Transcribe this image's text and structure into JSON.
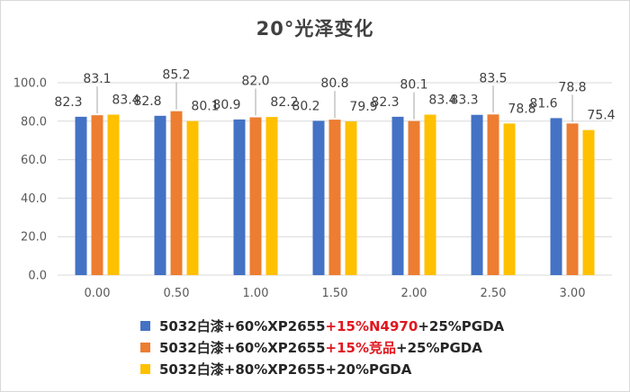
{
  "chart_data": {
    "type": "bar",
    "title": "20°光泽变化",
    "categories": [
      "0.00",
      "0.50",
      "1.00",
      "1.50",
      "2.00",
      "2.50",
      "3.00"
    ],
    "ylim": [
      0,
      100
    ],
    "yticks": [
      "0.0",
      "20.0",
      "40.0",
      "60.0",
      "80.0",
      "100.0"
    ],
    "grid": true,
    "legend_position": "bottom",
    "series": [
      {
        "name": "5032白漆+60%XP2655+15%N4970+25%PGDA",
        "name_parts": [
          {
            "text": "5032白漆+60%XP2655",
            "highlight": false
          },
          {
            "text": "+15%N4970",
            "highlight": true
          },
          {
            "text": "+25%PGDA",
            "highlight": false
          }
        ],
        "color": "#4472c4",
        "values": [
          82.3,
          82.8,
          80.9,
          80.2,
          82.3,
          83.3,
          81.6
        ]
      },
      {
        "name": "5032白漆+60%XP2655+15%竞品+25%PGDA",
        "name_parts": [
          {
            "text": "5032白漆+60%XP2655",
            "highlight": false
          },
          {
            "text": "+15%竞品",
            "highlight": true
          },
          {
            "text": "+25%PGDA",
            "highlight": false
          }
        ],
        "color": "#ed7d31",
        "values": [
          83.1,
          85.2,
          82.0,
          80.8,
          80.1,
          83.5,
          78.8
        ]
      },
      {
        "name": "5032白漆+80%XP2655+20%PGDA",
        "name_parts": [
          {
            "text": "5032白漆+80%XP2655+20%PGDA",
            "highlight": false
          }
        ],
        "color": "#ffc000",
        "values": [
          83.4,
          80.1,
          82.2,
          79.9,
          83.4,
          78.8,
          75.4
        ]
      }
    ],
    "label_text": [
      [
        "82.3",
        "82.8",
        "80.9",
        "80.2",
        "82.3",
        "83.3",
        "81.6"
      ],
      [
        "83.1",
        "85.2",
        "82.0",
        "80.8",
        "80.1",
        "83.5",
        "78.8"
      ],
      [
        "83.4",
        "80.1",
        "82.2",
        "79.9",
        "83.4",
        "78.8",
        "75.4"
      ]
    ],
    "highlight_color": "#e0161f"
  }
}
